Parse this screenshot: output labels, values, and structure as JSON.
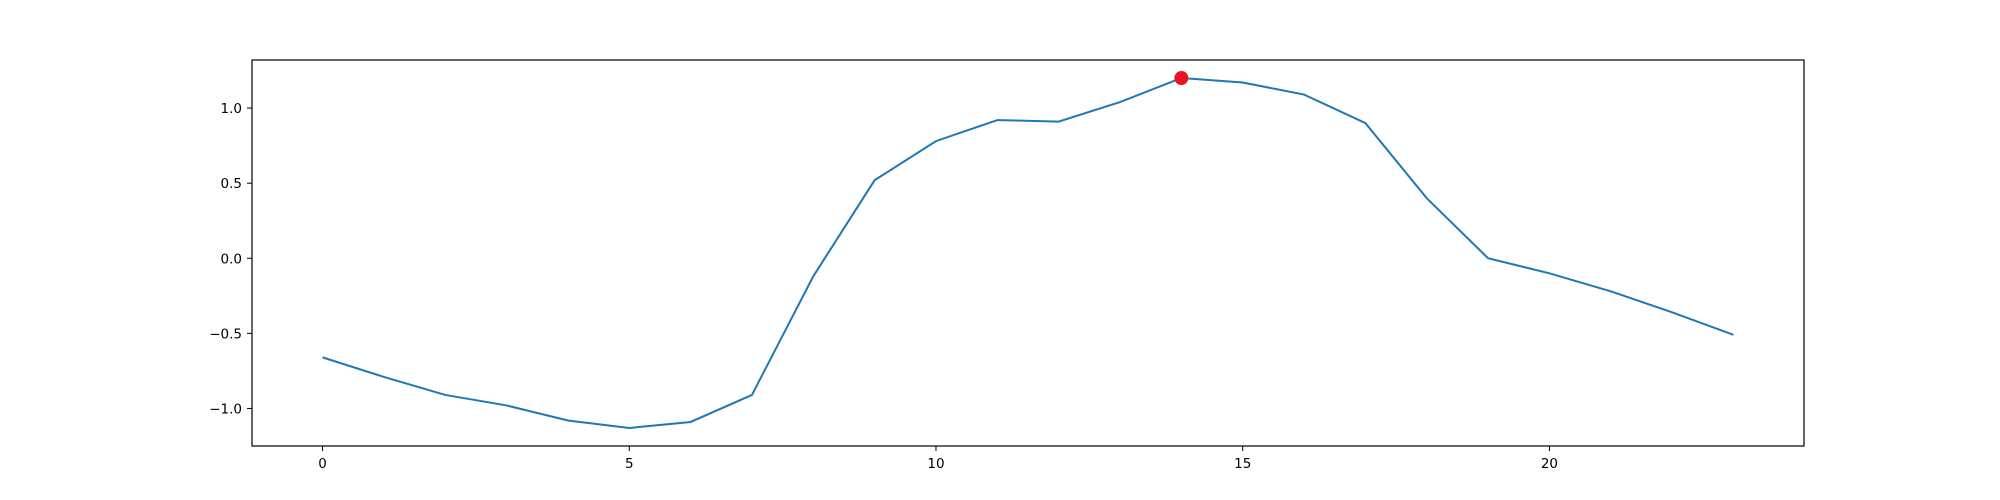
{
  "chart_data": {
    "type": "line",
    "title": "",
    "xlabel": "",
    "ylabel": "",
    "xlim": [
      -1.15,
      24.15
    ],
    "ylim": [
      -1.25,
      1.32
    ],
    "grid": false,
    "x_ticks": [
      0,
      5,
      10,
      15,
      20
    ],
    "x_tick_labels": [
      "0",
      "5",
      "10",
      "15",
      "20"
    ],
    "y_ticks": [
      -1.0,
      -0.5,
      0.0,
      0.5,
      1.0
    ],
    "y_tick_labels": [
      "−1.0",
      "−0.5",
      "0.0",
      "0.5",
      "1.0"
    ],
    "series": [
      {
        "color": "#1f77b4",
        "x": [
          0,
          1,
          2,
          3,
          4,
          5,
          6,
          7,
          8,
          9,
          10,
          11,
          12,
          13,
          14,
          15,
          16,
          17,
          18,
          19,
          20,
          21,
          22,
          23
        ],
        "values": [
          -0.66,
          -0.79,
          -0.91,
          -0.98,
          -1.08,
          -1.13,
          -1.09,
          -0.91,
          -0.12,
          0.52,
          0.78,
          0.92,
          0.91,
          1.04,
          1.2,
          1.17,
          1.09,
          0.9,
          0.4,
          0.0,
          -0.1,
          -0.22,
          -0.36,
          -0.51
        ]
      }
    ],
    "highlight": {
      "x": 14,
      "y": 1.2,
      "color": "#e8141f"
    }
  }
}
